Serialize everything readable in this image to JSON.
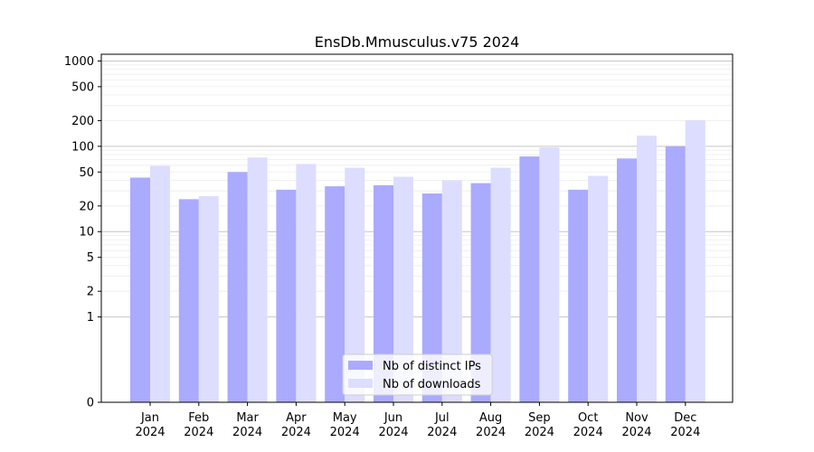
{
  "chart_data": {
    "type": "bar",
    "title": "EnsDb.Mmusculus.v75 2024",
    "xlabel": "",
    "ylabel": "",
    "categories": [
      "Jan\n2024",
      "Feb\n2024",
      "Mar\n2024",
      "Apr\n2024",
      "May\n2024",
      "Jun\n2024",
      "Jul\n2024",
      "Aug\n2024",
      "Sep\n2024",
      "Oct\n2024",
      "Nov\n2024",
      "Dec\n2024"
    ],
    "series": [
      {
        "name": "Nb of distinct IPs",
        "color": "#aaaaff",
        "values": [
          43,
          24,
          50,
          31,
          34,
          35,
          28,
          37,
          76,
          31,
          72,
          100
        ]
      },
      {
        "name": "Nb of downloads",
        "color": "#ddddff",
        "values": [
          59,
          26,
          74,
          62,
          56,
          44,
          40,
          56,
          97,
          45,
          133,
          203
        ]
      }
    ],
    "y_scale": "symlog",
    "ylim": [
      0,
      1200
    ],
    "yticks": [
      0,
      1,
      2,
      5,
      10,
      20,
      50,
      100,
      200,
      500,
      1000
    ],
    "grid": "y",
    "legend_position": "bottom-center"
  }
}
